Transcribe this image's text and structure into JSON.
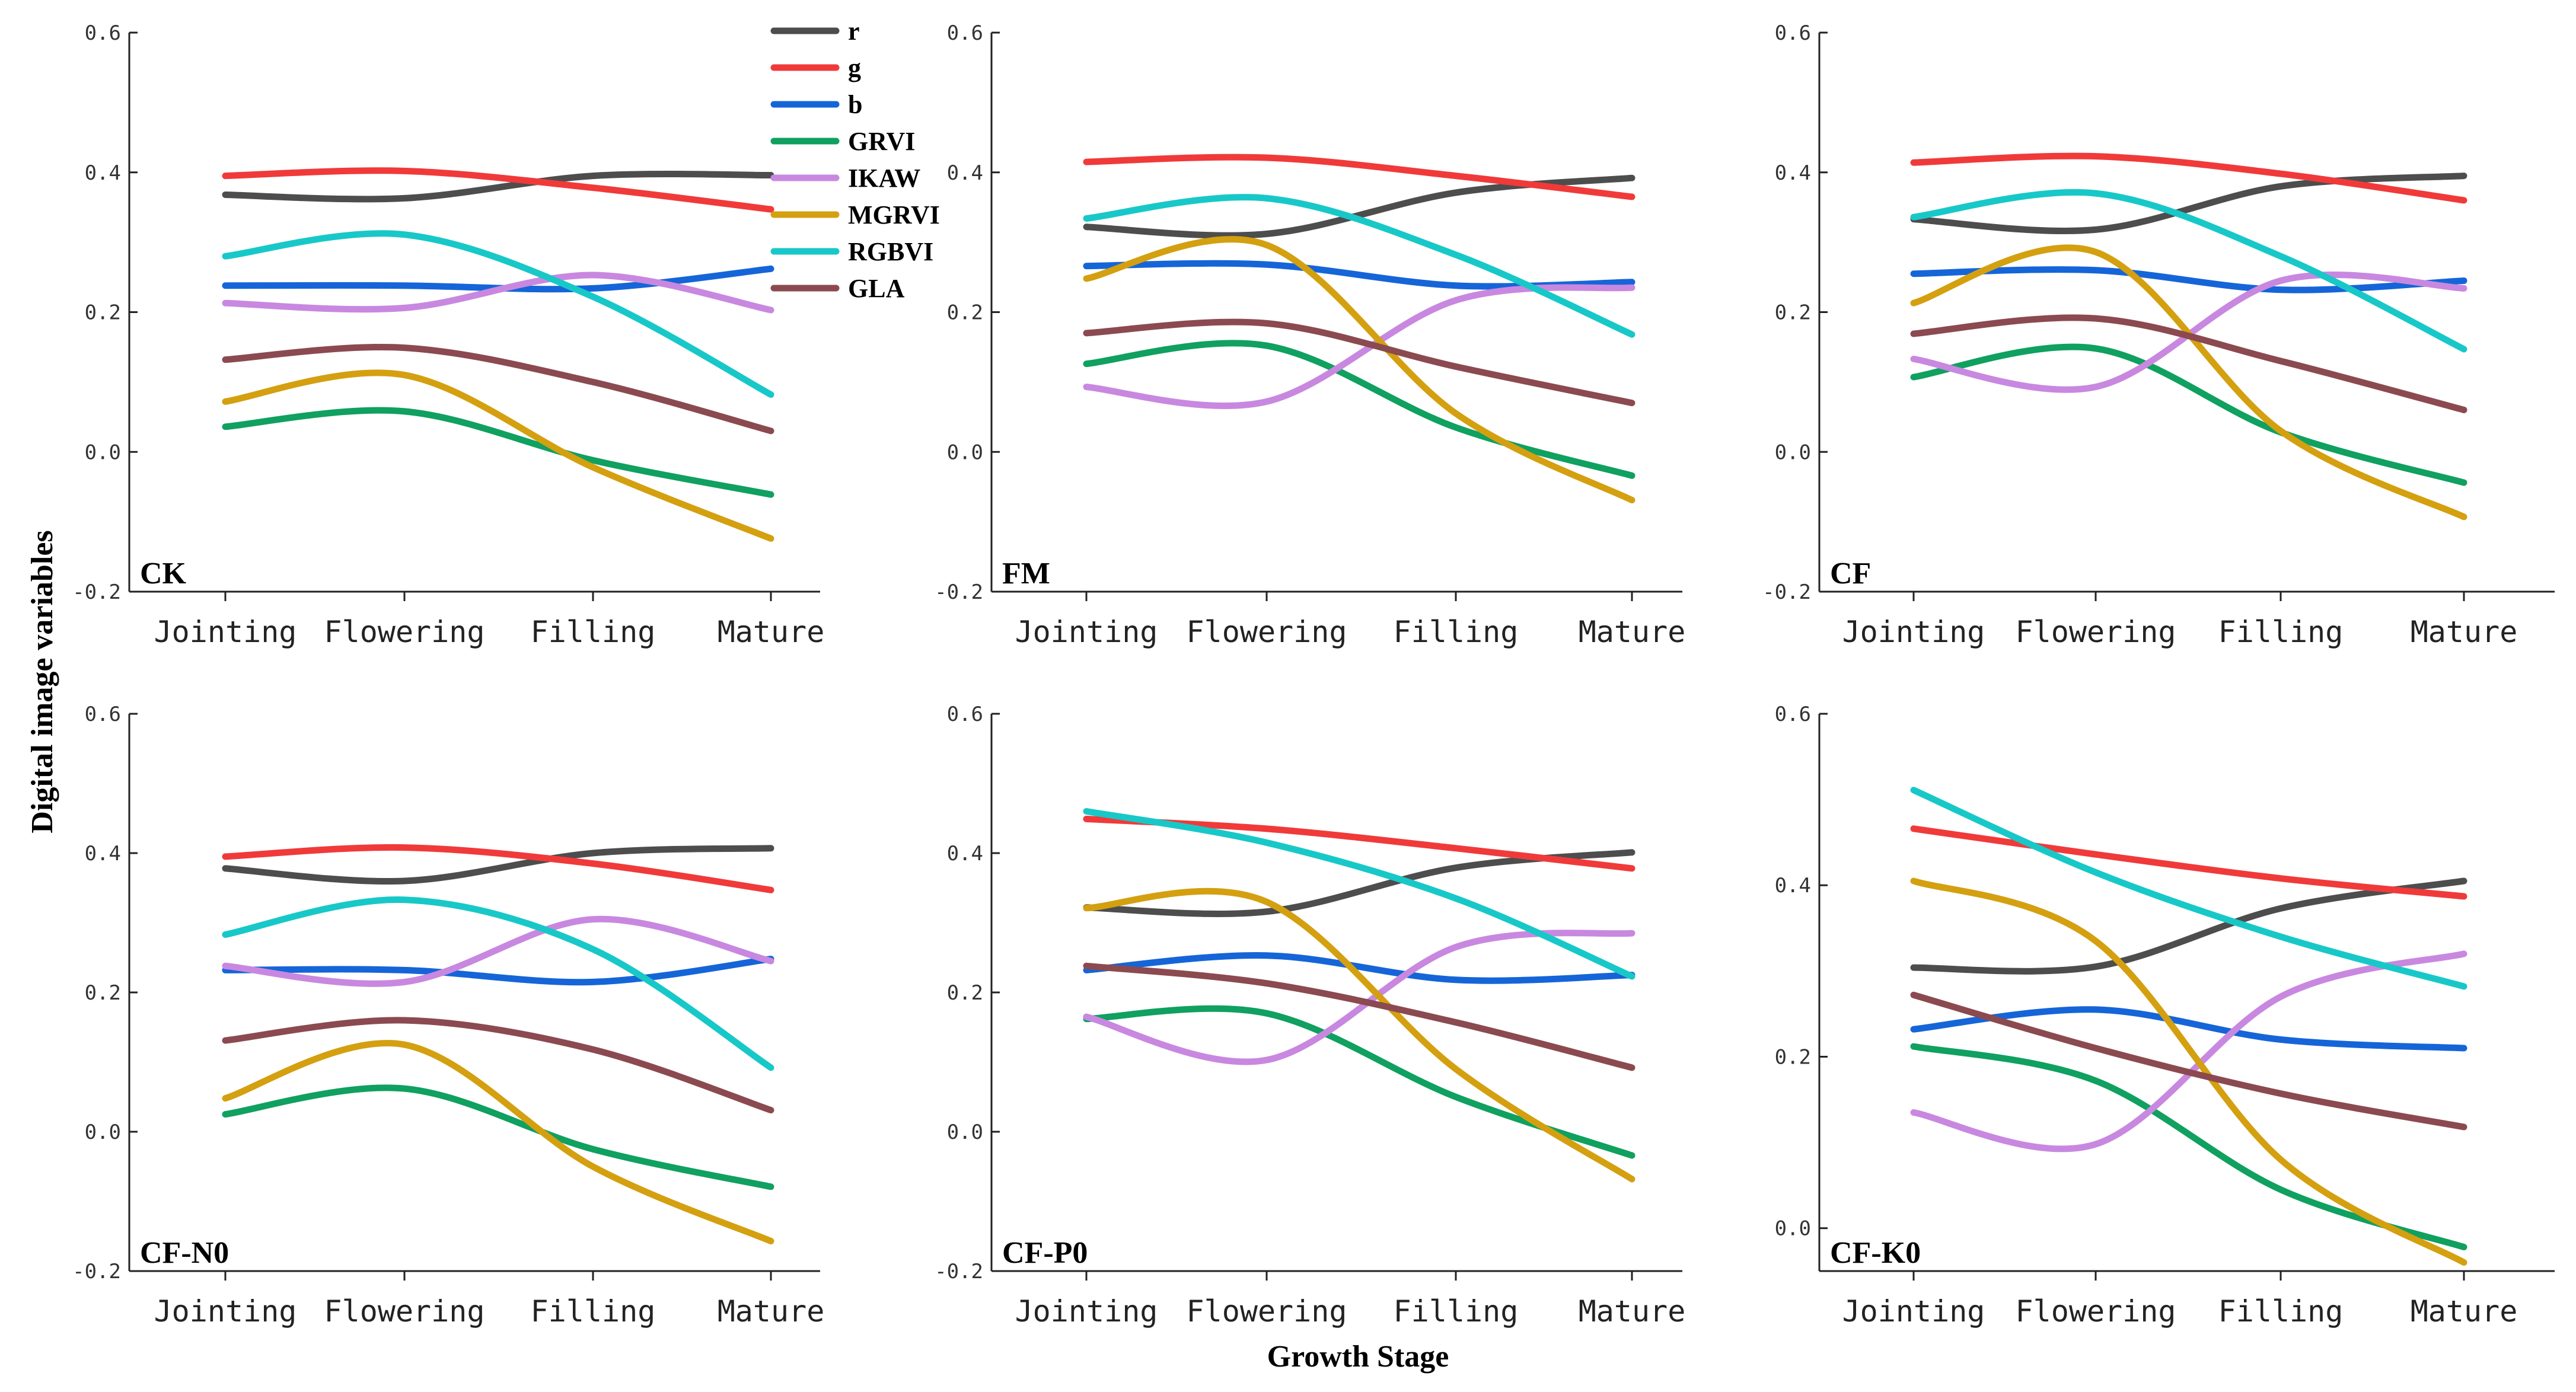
{
  "chart_data": {
    "type": "line",
    "ylabel": "Digital image variables",
    "xlabel": "Growth Stage",
    "categories": [
      "Jointing",
      "Flowering",
      "Filling",
      "Mature"
    ],
    "series_styles": [
      {
        "name": "r",
        "color": "#4d4d4d"
      },
      {
        "name": "g",
        "color": "#f03a3a"
      },
      {
        "name": "b",
        "color": "#1565d8"
      },
      {
        "name": "GRVI",
        "color": "#10a060"
      },
      {
        "name": "IKAW",
        "color": "#c888e0"
      },
      {
        "name": "MGRVI",
        "color": "#d4a010"
      },
      {
        "name": "RGBVI",
        "color": "#18c8c8"
      },
      {
        "name": "GLA",
        "color": "#8b4a50"
      }
    ],
    "panels": [
      {
        "label": "CK",
        "ylim": [
          -0.2,
          0.6
        ],
        "yticks": [
          "-0.2",
          "0.0",
          "0.2",
          "0.4",
          "0.6"
        ],
        "series": [
          {
            "name": "r",
            "values": [
              0.368,
              0.363,
              0.395,
              0.396
            ]
          },
          {
            "name": "g",
            "values": [
              0.395,
              0.402,
              0.378,
              0.347
            ]
          },
          {
            "name": "b",
            "values": [
              0.238,
              0.238,
              0.234,
              0.262
            ]
          },
          {
            "name": "GRVI",
            "values": [
              0.036,
              0.058,
              -0.012,
              -0.061
            ]
          },
          {
            "name": "IKAW",
            "values": [
              0.213,
              0.206,
              0.253,
              0.203
            ]
          },
          {
            "name": "MGRVI",
            "values": [
              0.072,
              0.11,
              -0.022,
              -0.124
            ]
          },
          {
            "name": "RGBVI",
            "values": [
              0.28,
              0.311,
              0.222,
              0.082
            ]
          },
          {
            "name": "GLA",
            "values": [
              0.132,
              0.149,
              0.1,
              0.03
            ]
          }
        ]
      },
      {
        "label": "FM",
        "ylim": [
          -0.2,
          0.6
        ],
        "yticks": [
          "-0.2",
          "0.0",
          "0.2",
          "0.4",
          "0.6"
        ],
        "series": [
          {
            "name": "r",
            "values": [
              0.322,
              0.312,
              0.371,
              0.392
            ]
          },
          {
            "name": "g",
            "values": [
              0.415,
              0.421,
              0.395,
              0.365
            ]
          },
          {
            "name": "b",
            "values": [
              0.266,
              0.268,
              0.238,
              0.243
            ]
          },
          {
            "name": "GRVI",
            "values": [
              0.126,
              0.152,
              0.035,
              -0.034
            ]
          },
          {
            "name": "IKAW",
            "values": [
              0.093,
              0.072,
              0.217,
              0.235
            ]
          },
          {
            "name": "MGRVI",
            "values": [
              0.248,
              0.296,
              0.055,
              -0.069
            ]
          },
          {
            "name": "RGBVI",
            "values": [
              0.334,
              0.363,
              0.282,
              0.168
            ]
          },
          {
            "name": "GLA",
            "values": [
              0.17,
              0.184,
              0.122,
              0.07
            ]
          }
        ]
      },
      {
        "label": "CF",
        "ylim": [
          -0.2,
          0.6
        ],
        "yticks": [
          "-0.2",
          "0.0",
          "0.2",
          "0.4",
          "0.6"
        ],
        "series": [
          {
            "name": "r",
            "values": [
              0.333,
              0.318,
              0.38,
              0.395
            ]
          },
          {
            "name": "g",
            "values": [
              0.414,
              0.423,
              0.398,
              0.36
            ]
          },
          {
            "name": "b",
            "values": [
              0.255,
              0.26,
              0.232,
              0.245
            ]
          },
          {
            "name": "GRVI",
            "values": [
              0.107,
              0.148,
              0.028,
              -0.044
            ]
          },
          {
            "name": "IKAW",
            "values": [
              0.133,
              0.093,
              0.245,
              0.234
            ]
          },
          {
            "name": "MGRVI",
            "values": [
              0.213,
              0.286,
              0.03,
              -0.093
            ]
          },
          {
            "name": "RGBVI",
            "values": [
              0.336,
              0.37,
              0.28,
              0.147
            ]
          },
          {
            "name": "GLA",
            "values": [
              0.169,
              0.191,
              0.13,
              0.06
            ]
          }
        ]
      },
      {
        "label": "CF-N0",
        "ylim": [
          -0.2,
          0.6
        ],
        "yticks": [
          "-0.2",
          "0.0",
          "0.2",
          "0.4",
          "0.6"
        ],
        "series": [
          {
            "name": "r",
            "values": [
              0.378,
              0.36,
              0.4,
              0.407
            ]
          },
          {
            "name": "g",
            "values": [
              0.395,
              0.408,
              0.385,
              0.347
            ]
          },
          {
            "name": "b",
            "values": [
              0.232,
              0.232,
              0.215,
              0.248
            ]
          },
          {
            "name": "GRVI",
            "values": [
              0.025,
              0.062,
              -0.025,
              -0.079
            ]
          },
          {
            "name": "IKAW",
            "values": [
              0.238,
              0.215,
              0.305,
              0.245
            ]
          },
          {
            "name": "MGRVI",
            "values": [
              0.048,
              0.125,
              -0.05,
              -0.157
            ]
          },
          {
            "name": "RGBVI",
            "values": [
              0.283,
              0.333,
              0.262,
              0.092
            ]
          },
          {
            "name": "GLA",
            "values": [
              0.131,
              0.16,
              0.118,
              0.031
            ]
          }
        ]
      },
      {
        "label": "CF-P0",
        "ylim": [
          -0.2,
          0.6
        ],
        "yticks": [
          "-0.2",
          "0.0",
          "0.2",
          "0.4",
          "0.6"
        ],
        "series": [
          {
            "name": "r",
            "values": [
              0.322,
              0.316,
              0.379,
              0.401
            ]
          },
          {
            "name": "g",
            "values": [
              0.449,
              0.435,
              0.407,
              0.378
            ]
          },
          {
            "name": "b",
            "values": [
              0.232,
              0.253,
              0.218,
              0.225
            ]
          },
          {
            "name": "GRVI",
            "values": [
              0.162,
              0.17,
              0.05,
              -0.034
            ]
          },
          {
            "name": "IKAW",
            "values": [
              0.165,
              0.103,
              0.265,
              0.285
            ]
          },
          {
            "name": "MGRVI",
            "values": [
              0.321,
              0.33,
              0.09,
              -0.068
            ]
          },
          {
            "name": "RGBVI",
            "values": [
              0.46,
              0.415,
              0.335,
              0.223
            ]
          },
          {
            "name": "GLA",
            "values": [
              0.238,
              0.213,
              0.157,
              0.092
            ]
          }
        ]
      },
      {
        "label": "CF-K0",
        "ylim": [
          -0.05,
          0.6
        ],
        "yticks": [
          "0.0",
          "0.2",
          "0.4",
          "0.6"
        ],
        "series": [
          {
            "name": "r",
            "values": [
              0.304,
              0.305,
              0.373,
              0.405
            ]
          },
          {
            "name": "g",
            "values": [
              0.466,
              0.436,
              0.408,
              0.387
            ]
          },
          {
            "name": "b",
            "values": [
              0.232,
              0.255,
              0.22,
              0.21
            ]
          },
          {
            "name": "GRVI",
            "values": [
              0.212,
              0.172,
              0.045,
              -0.022
            ]
          },
          {
            "name": "IKAW",
            "values": [
              0.135,
              0.098,
              0.27,
              0.32
            ]
          },
          {
            "name": "MGRVI",
            "values": [
              0.405,
              0.335,
              0.08,
              -0.04
            ]
          },
          {
            "name": "RGBVI",
            "values": [
              0.511,
              0.415,
              0.34,
              0.282
            ]
          },
          {
            "name": "GLA",
            "values": [
              0.272,
              0.21,
              0.157,
              0.118
            ]
          }
        ]
      }
    ]
  }
}
